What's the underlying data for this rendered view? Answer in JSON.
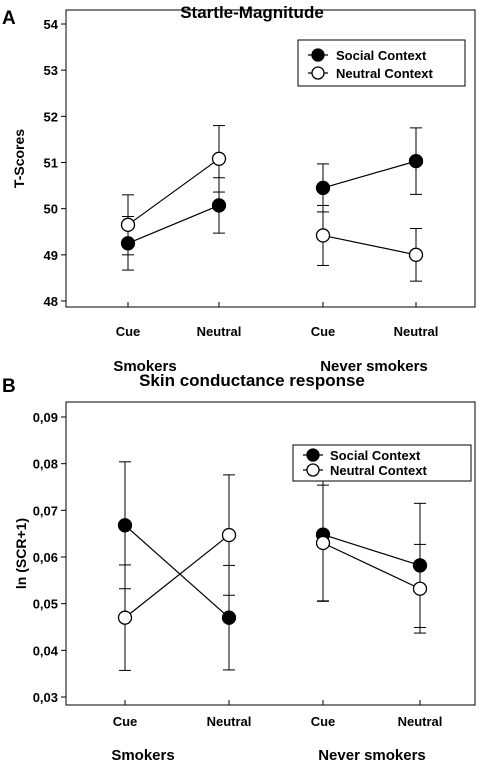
{
  "chart_data": [
    {
      "panel": "A",
      "type": "line",
      "title": "Startle-Magnitude",
      "xlabel": "",
      "ylabel": "T-Scores",
      "ylim": [
        48,
        54
      ],
      "yticks": [
        "48",
        "49",
        "50",
        "51",
        "52",
        "53",
        "54"
      ],
      "categories": [
        "Cue",
        "Neutral",
        "Cue",
        "Neutral"
      ],
      "groups": [
        {
          "label": "Smokers",
          "categories": [
            0,
            1
          ]
        },
        {
          "label": "Never smokers",
          "categories": [
            2,
            3
          ]
        }
      ],
      "legend_position": "top-right",
      "series": [
        {
          "name": "Social Context",
          "marker": "filled-circle",
          "values": [
            49.25,
            50.07,
            50.45,
            51.03
          ],
          "error": [
            0.58,
            0.6,
            0.52,
            0.72
          ]
        },
        {
          "name": "Neutral Context",
          "marker": "open-circle",
          "values": [
            49.65,
            51.08,
            49.42,
            49.0
          ],
          "error": [
            0.65,
            0.72,
            0.65,
            0.57
          ]
        }
      ]
    },
    {
      "panel": "B",
      "type": "line",
      "title": "Skin conductance response",
      "xlabel": "",
      "ylabel": "ln (SCR+1)",
      "ylim": [
        0.03,
        0.09
      ],
      "yticks": [
        "0,03",
        "0,04",
        "0,05",
        "0,06",
        "0,07",
        "0,08",
        "0,09"
      ],
      "categories": [
        "Cue",
        "Neutral",
        "Cue",
        "Neutral"
      ],
      "groups": [
        {
          "label": "Smokers",
          "categories": [
            0,
            1
          ]
        },
        {
          "label": "Never smokers",
          "categories": [
            2,
            3
          ]
        }
      ],
      "legend_position": "top-right",
      "series": [
        {
          "name": "Social Context",
          "marker": "filled-circle",
          "values": [
            0.0668,
            0.047,
            0.0648,
            0.0582
          ],
          "error": [
            0.0136,
            0.0112,
            0.0143,
            0.0133
          ]
        },
        {
          "name": "Neutral Context",
          "marker": "open-circle",
          "values": [
            0.047,
            0.0647,
            0.063,
            0.0532
          ],
          "error": [
            0.0113,
            0.0129,
            0.0124,
            0.0095
          ]
        }
      ]
    }
  ]
}
